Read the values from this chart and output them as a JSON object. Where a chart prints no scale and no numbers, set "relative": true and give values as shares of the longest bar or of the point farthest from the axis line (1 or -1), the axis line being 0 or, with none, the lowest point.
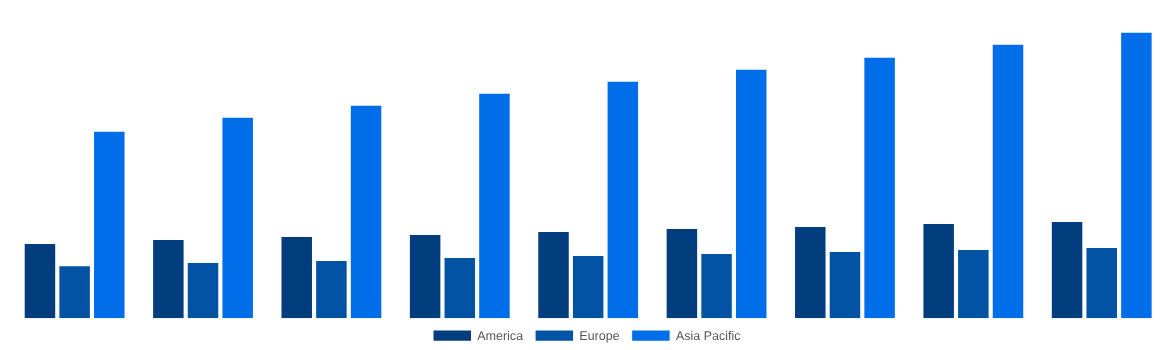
{
  "chart_data": {
    "type": "bar",
    "relative": true,
    "categories": [
      null,
      null,
      null,
      null,
      null,
      null,
      null,
      null,
      null
    ],
    "series": [
      {
        "name": "America",
        "color": "#023e7d",
        "values": [
          0.26,
          0.274,
          0.284,
          0.291,
          0.302,
          0.312,
          0.319,
          0.33,
          0.337
        ]
      },
      {
        "name": "Europe",
        "color": "#0353a4",
        "values": [
          0.182,
          0.193,
          0.2,
          0.211,
          0.218,
          0.225,
          0.232,
          0.239,
          0.246
        ]
      },
      {
        "name": "Asia Pacific",
        "color": "#006ee9",
        "values": [
          0.653,
          0.702,
          0.744,
          0.786,
          0.828,
          0.87,
          0.912,
          0.958,
          1
        ]
      }
    ],
    "legend": "bottom",
    "grid": false
  }
}
